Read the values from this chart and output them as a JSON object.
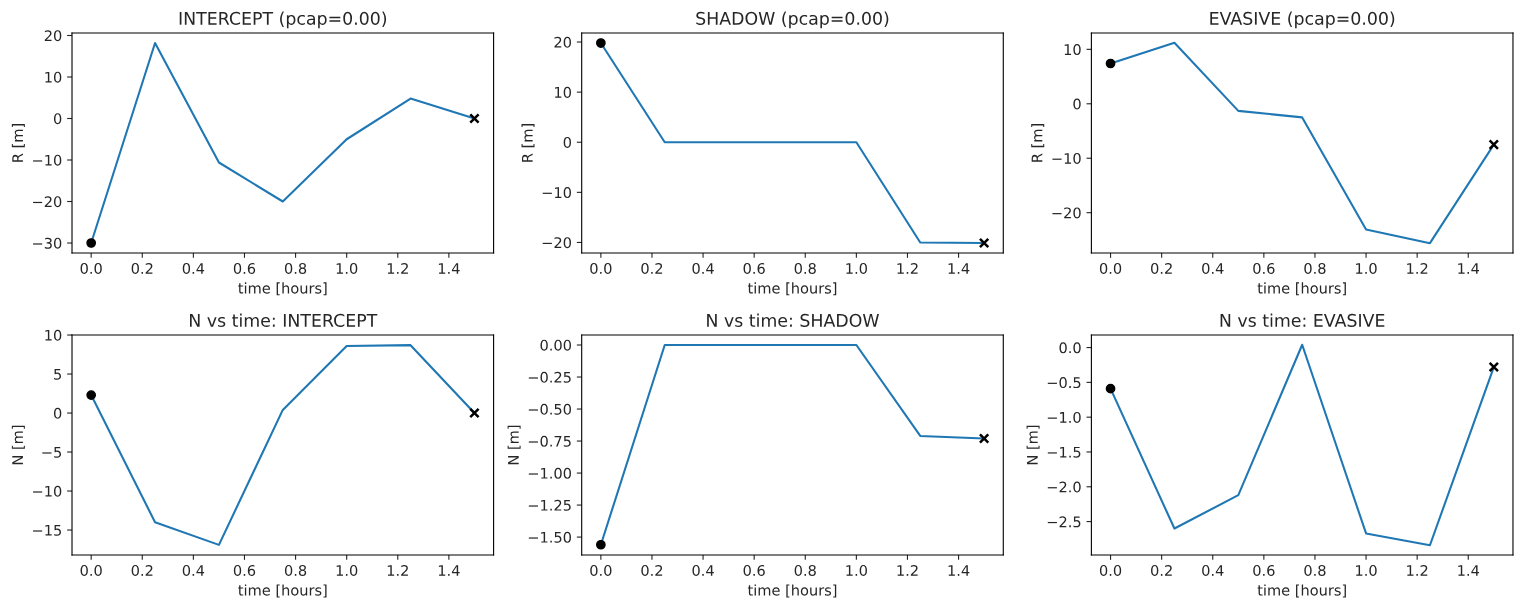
{
  "chart_data": [
    {
      "type": "line",
      "title": "INTERCEPT (pcap=0.00)",
      "xlabel": "time [hours]",
      "ylabel": "R [m]",
      "x": [
        0,
        0.25,
        0.5,
        0.75,
        1.0,
        1.25,
        1.5
      ],
      "xlim": [
        -0.075,
        1.575
      ],
      "xticks": [
        {
          "value": 0,
          "label": "0.0"
        },
        {
          "value": 0.2,
          "label": "0.2"
        },
        {
          "value": 0.4,
          "label": "0.4"
        },
        {
          "value": 0.6,
          "label": "0.6"
        },
        {
          "value": 0.8,
          "label": "0.8"
        },
        {
          "value": 1.0,
          "label": "1.0"
        },
        {
          "value": 1.2,
          "label": "1.2"
        },
        {
          "value": 1.4,
          "label": "1.4"
        }
      ],
      "ylim": [
        -32.4,
        20.6
      ],
      "yticks": [
        {
          "value": -30,
          "label": "−30"
        },
        {
          "value": -20,
          "label": "−20"
        },
        {
          "value": -10,
          "label": "−10"
        },
        0,
        10,
        20
      ],
      "grid": false,
      "series": [
        {
          "color": "#1f77b4",
          "values": [
            -30,
            18.2,
            -10.6,
            -20,
            -5,
            4.8,
            0
          ]
        },
        {
          "type": "scatter",
          "color": "#000000",
          "marker": "circle",
          "values": [
            -30,
            null,
            null,
            null,
            null,
            null,
            null
          ]
        },
        {
          "type": "scatter",
          "color": "#000000",
          "marker": "cross",
          "values": [
            null,
            null,
            null,
            null,
            null,
            null,
            0
          ]
        }
      ]
    },
    {
      "type": "line",
      "title": "SHADOW (pcap=0.00)",
      "xlabel": "time [hours]",
      "ylabel": "R [m]",
      "x": [
        0,
        0.25,
        0.5,
        0.75,
        1.0,
        1.25,
        1.5
      ],
      "xlim": [
        -0.075,
        1.575
      ],
      "xticks": [
        {
          "value": 0,
          "label": "0.0"
        },
        {
          "value": 0.2,
          "label": "0.2"
        },
        {
          "value": 0.4,
          "label": "0.4"
        },
        {
          "value": 0.6,
          "label": "0.6"
        },
        {
          "value": 0.8,
          "label": "0.8"
        },
        {
          "value": 1.0,
          "label": "1.0"
        },
        {
          "value": 1.2,
          "label": "1.2"
        },
        {
          "value": 1.4,
          "label": "1.4"
        }
      ],
      "ylim": [
        -22.1,
        21.8
      ],
      "yticks": [
        {
          "value": -20,
          "label": "−20"
        },
        {
          "value": -10,
          "label": "−10"
        },
        0,
        10,
        20
      ],
      "grid": false,
      "series": [
        {
          "color": "#1f77b4",
          "values": [
            19.8,
            0,
            0,
            0,
            0,
            -20,
            -20.1
          ]
        },
        {
          "type": "scatter",
          "color": "#000000",
          "marker": "circle",
          "values": [
            19.8,
            null,
            null,
            null,
            null,
            null,
            null
          ]
        },
        {
          "type": "scatter",
          "color": "#000000",
          "marker": "cross",
          "values": [
            null,
            null,
            null,
            null,
            null,
            null,
            -20.1
          ]
        }
      ]
    },
    {
      "type": "line",
      "title": "EVASIVE (pcap=0.00)",
      "xlabel": "time [hours]",
      "ylabel": "R [m]",
      "x": [
        0,
        0.25,
        0.5,
        0.75,
        1.0,
        1.25,
        1.5
      ],
      "xlim": [
        -0.075,
        1.575
      ],
      "xticks": [
        {
          "value": 0,
          "label": "0.0"
        },
        {
          "value": 0.2,
          "label": "0.2"
        },
        {
          "value": 0.4,
          "label": "0.4"
        },
        {
          "value": 0.6,
          "label": "0.6"
        },
        {
          "value": 0.8,
          "label": "0.8"
        },
        {
          "value": 1.0,
          "label": "1.0"
        },
        {
          "value": 1.2,
          "label": "1.2"
        },
        {
          "value": 1.4,
          "label": "1.4"
        }
      ],
      "ylim": [
        -27.4,
        13.0
      ],
      "yticks": [
        {
          "value": -20,
          "label": "−20"
        },
        {
          "value": -10,
          "label": "−10"
        },
        0,
        10
      ],
      "grid": false,
      "series": [
        {
          "color": "#1f77b4",
          "values": [
            7.4,
            11.2,
            -1.3,
            -2.5,
            -23.1,
            -25.6,
            -7.5
          ]
        },
        {
          "type": "scatter",
          "color": "#000000",
          "marker": "circle",
          "values": [
            7.4,
            null,
            null,
            null,
            null,
            null,
            null
          ]
        },
        {
          "type": "scatter",
          "color": "#000000",
          "marker": "cross",
          "values": [
            null,
            null,
            null,
            null,
            null,
            null,
            -7.5
          ]
        }
      ]
    },
    {
      "type": "line",
      "title": "N vs time: INTERCEPT",
      "xlabel": "time [hours]",
      "ylabel": "N [m]",
      "x": [
        0,
        0.25,
        0.5,
        0.75,
        1.0,
        1.25,
        1.5
      ],
      "xlim": [
        -0.075,
        1.575
      ],
      "xticks": [
        {
          "value": 0,
          "label": "0.0"
        },
        {
          "value": 0.2,
          "label": "0.2"
        },
        {
          "value": 0.4,
          "label": "0.4"
        },
        {
          "value": 0.6,
          "label": "0.6"
        },
        {
          "value": 0.8,
          "label": "0.8"
        },
        {
          "value": 1.0,
          "label": "1.0"
        },
        {
          "value": 1.2,
          "label": "1.2"
        },
        {
          "value": 1.4,
          "label": "1.4"
        }
      ],
      "ylim": [
        -18.2,
        10.0
      ],
      "yticks": [
        {
          "value": -15,
          "label": "−15"
        },
        {
          "value": -10,
          "label": "−10"
        },
        {
          "value": -5,
          "label": "−5"
        },
        0,
        5,
        10
      ],
      "grid": false,
      "series": [
        {
          "color": "#1f77b4",
          "values": [
            2.3,
            -14,
            -16.9,
            0.4,
            8.6,
            8.7,
            0
          ]
        },
        {
          "type": "scatter",
          "color": "#000000",
          "marker": "circle",
          "values": [
            2.3,
            null,
            null,
            null,
            null,
            null,
            null
          ]
        },
        {
          "type": "scatter",
          "color": "#000000",
          "marker": "cross",
          "values": [
            null,
            null,
            null,
            null,
            null,
            null,
            0
          ]
        }
      ]
    },
    {
      "type": "line",
      "title": "N vs time: SHADOW",
      "xlabel": "time [hours]",
      "ylabel": "N [m]",
      "x": [
        0,
        0.25,
        0.5,
        0.75,
        1.0,
        1.25,
        1.5
      ],
      "xlim": [
        -0.075,
        1.575
      ],
      "xticks": [
        {
          "value": 0,
          "label": "0.0"
        },
        {
          "value": 0.2,
          "label": "0.2"
        },
        {
          "value": 0.4,
          "label": "0.4"
        },
        {
          "value": 0.6,
          "label": "0.6"
        },
        {
          "value": 0.8,
          "label": "0.8"
        },
        {
          "value": 1.0,
          "label": "1.0"
        },
        {
          "value": 1.2,
          "label": "1.2"
        },
        {
          "value": 1.4,
          "label": "1.4"
        }
      ],
      "ylim": [
        -1.64,
        0.078
      ],
      "yticks": [
        {
          "value": -1.5,
          "label": "−1.50"
        },
        {
          "value": -1.25,
          "label": "−1.25"
        },
        {
          "value": -1.0,
          "label": "−1.00"
        },
        {
          "value": -0.75,
          "label": "−0.75"
        },
        {
          "value": -0.5,
          "label": "−0.50"
        },
        {
          "value": -0.25,
          "label": "−0.25"
        },
        {
          "value": 0,
          "label": "0.00"
        }
      ],
      "grid": false,
      "series": [
        {
          "color": "#1f77b4",
          "values": [
            -1.56,
            0,
            0,
            0,
            0,
            -0.71,
            -0.73
          ]
        },
        {
          "type": "scatter",
          "color": "#000000",
          "marker": "circle",
          "values": [
            -1.56,
            null,
            null,
            null,
            null,
            null,
            null
          ]
        },
        {
          "type": "scatter",
          "color": "#000000",
          "marker": "cross",
          "values": [
            null,
            null,
            null,
            null,
            null,
            null,
            -0.73
          ]
        }
      ]
    },
    {
      "type": "line",
      "title": "N vs time: EVASIVE",
      "xlabel": "time [hours]",
      "ylabel": "N [m]",
      "x": [
        0,
        0.25,
        0.5,
        0.75,
        1.0,
        1.25,
        1.5
      ],
      "xlim": [
        -0.075,
        1.575
      ],
      "xticks": [
        {
          "value": 0,
          "label": "0.0"
        },
        {
          "value": 0.2,
          "label": "0.2"
        },
        {
          "value": 0.4,
          "label": "0.4"
        },
        {
          "value": 0.6,
          "label": "0.6"
        },
        {
          "value": 0.8,
          "label": "0.8"
        },
        {
          "value": 1.0,
          "label": "1.0"
        },
        {
          "value": 1.2,
          "label": "1.2"
        },
        {
          "value": 1.4,
          "label": "1.4"
        }
      ],
      "ylim": [
        -2.98,
        0.18
      ],
      "yticks": [
        {
          "value": -2.5,
          "label": "−2.5"
        },
        {
          "value": -2.0,
          "label": "−2.0"
        },
        {
          "value": -1.5,
          "label": "−1.5"
        },
        {
          "value": -1.0,
          "label": "−1.0"
        },
        {
          "value": -0.5,
          "label": "−0.5"
        },
        {
          "value": 0,
          "label": "0.0"
        }
      ],
      "grid": false,
      "series": [
        {
          "color": "#1f77b4",
          "values": [
            -0.59,
            -2.6,
            -2.12,
            0.04,
            -2.67,
            -2.84,
            -0.28
          ]
        },
        {
          "type": "scatter",
          "color": "#000000",
          "marker": "circle",
          "values": [
            -0.59,
            null,
            null,
            null,
            null,
            null,
            null
          ]
        },
        {
          "type": "scatter",
          "color": "#000000",
          "marker": "cross",
          "values": [
            null,
            null,
            null,
            null,
            null,
            null,
            -0.28
          ]
        }
      ]
    }
  ]
}
